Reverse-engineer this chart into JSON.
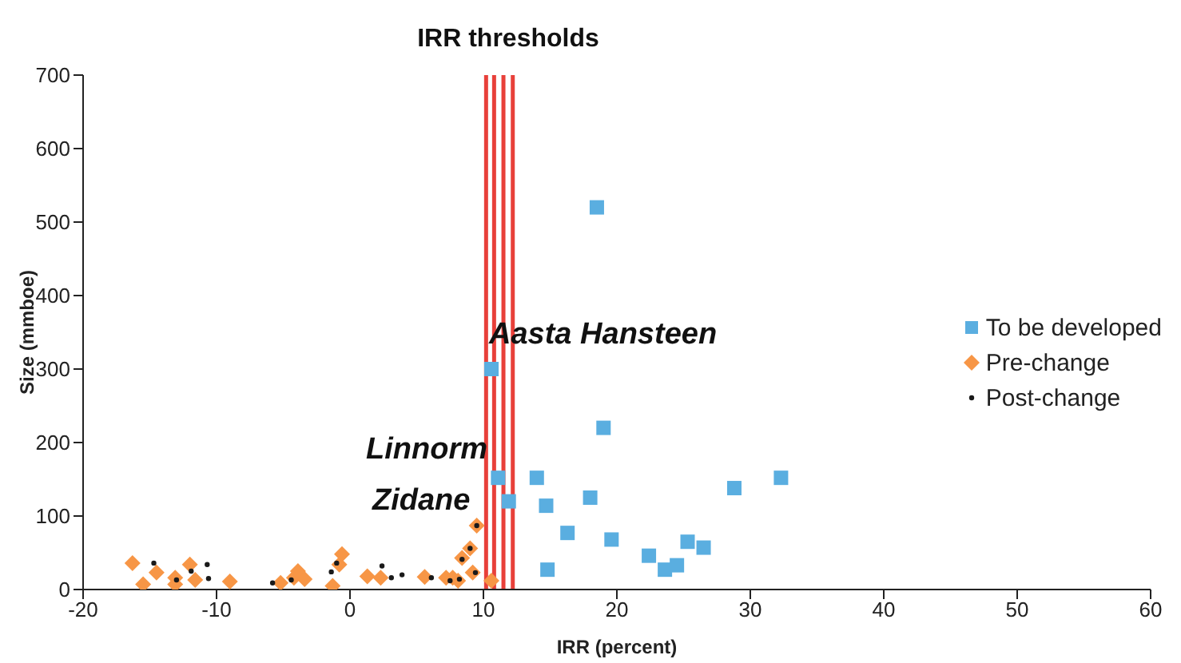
{
  "chart_data": {
    "type": "scatter",
    "title": "IRR thresholds",
    "xlabel": "IRR (percent)",
    "ylabel": "Size (mmboe)",
    "xlim": [
      -20,
      60
    ],
    "xticks": [
      -20,
      -10,
      0,
      10,
      20,
      30,
      40,
      50,
      60
    ],
    "ylim": [
      0,
      700
    ],
    "yticks": [
      0,
      100,
      200,
      300,
      400,
      500,
      600,
      700
    ],
    "legend": "right",
    "ref_lines": [
      {
        "axis": "x",
        "value": 10.2,
        "color": "#e8403a"
      },
      {
        "axis": "x",
        "value": 10.8,
        "color": "#e8403a"
      },
      {
        "axis": "x",
        "value": 11.5,
        "color": "#e8403a"
      },
      {
        "axis": "x",
        "value": 12.2,
        "color": "#e8403a"
      }
    ],
    "annotations": [
      "Aasta Hansteen",
      "Linnorm",
      "Zidane"
    ],
    "series": [
      {
        "name": "To be developed",
        "color": "#5aaee0",
        "marker": "square",
        "x": [
          18.5,
          10.6,
          19.0,
          11.1,
          14.0,
          11.9,
          14.7,
          18.0,
          28.8,
          32.3,
          16.3,
          19.6,
          22.4,
          25.3,
          26.5,
          23.6,
          24.5,
          14.8
        ],
        "values": [
          520,
          300,
          220,
          152,
          152,
          120,
          114,
          125,
          138,
          152,
          77,
          68,
          46,
          65,
          57,
          27,
          33,
          27
        ]
      },
      {
        "name": "Pre-change",
        "color": "#f79646",
        "marker": "diamond",
        "x": [
          -16.3,
          -15.5,
          -14.5,
          -13.1,
          -13.1,
          -12.0,
          -11.6,
          -9.0,
          -5.2,
          -4.2,
          -3.9,
          -3.4,
          -1.3,
          -0.8,
          -0.6,
          1.3,
          2.3,
          5.6,
          7.2,
          7.7,
          8.1,
          8.4,
          9.0,
          9.2,
          9.5,
          10.6
        ],
        "values": [
          36,
          7,
          23,
          16,
          7,
          34,
          13,
          11,
          9,
          16,
          25,
          14,
          5,
          34,
          48,
          18,
          16,
          17,
          16,
          16,
          12,
          43,
          56,
          23,
          87,
          12
        ]
      },
      {
        "name": "Post-change",
        "color": "#1a1a1a",
        "marker": "circle",
        "x": [
          -14.7,
          -10.7,
          -10.6,
          -11.9,
          -13.0,
          -5.8,
          -4.4,
          -1.4,
          -1.0,
          2.4,
          3.1,
          3.9,
          6.1,
          7.5,
          8.4,
          9.0,
          9.5,
          9.4,
          8.2
        ],
        "values": [
          36,
          34,
          15,
          25,
          13,
          9,
          13,
          24,
          36,
          32,
          16,
          20,
          16,
          12,
          41,
          56,
          87,
          23,
          14
        ]
      }
    ]
  }
}
